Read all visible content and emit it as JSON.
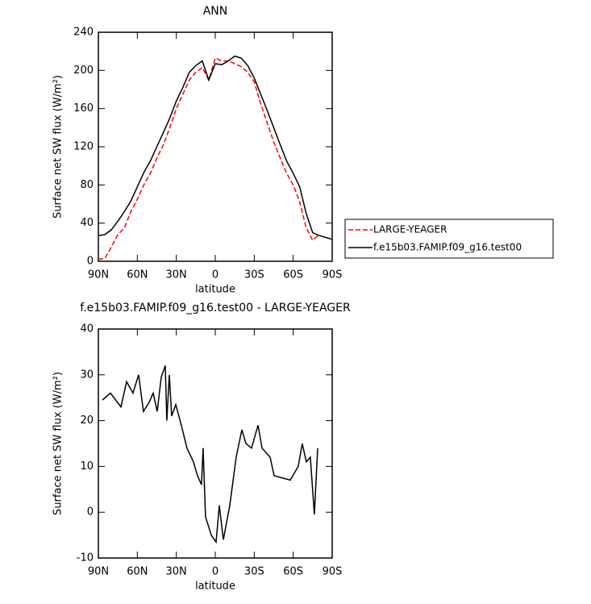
{
  "chart_data": [
    {
      "type": "line",
      "title": "ANN",
      "xlabel": "latitude",
      "ylabel": "Surface net SW flux (W/m²)",
      "x": [
        90,
        85,
        80,
        75,
        70,
        65,
        60,
        55,
        50,
        45,
        40,
        35,
        30,
        25,
        20,
        15,
        10,
        5,
        0,
        -5,
        -10,
        -15,
        -20,
        -25,
        -30,
        -35,
        -40,
        -45,
        -50,
        -55,
        -60,
        -65,
        -70,
        -75,
        -80,
        -85,
        -90
      ],
      "xlim": [
        90,
        -90
      ],
      "xticks": [
        {
          "value": 90,
          "label": "90N"
        },
        {
          "value": 60,
          "label": "60N"
        },
        {
          "value": 30,
          "label": "30N"
        },
        0,
        {
          "value": -30,
          "label": "30S"
        },
        {
          "value": -60,
          "label": "60S"
        },
        {
          "value": -90,
          "label": "90S"
        }
      ],
      "ylim": [
        0,
        240
      ],
      "yticks": [
        0,
        40,
        80,
        120,
        160,
        200,
        240
      ],
      "legend": "right",
      "series": [
        {
          "name": "LARGE-YEAGER",
          "color": "#ff0000",
          "dash": "dashed",
          "values": [
            2,
            3,
            15,
            28,
            35,
            52,
            65,
            80,
            92,
            108,
            122,
            140,
            160,
            175,
            190,
            198,
            203,
            190,
            213,
            210,
            210,
            207,
            204,
            198,
            188,
            165,
            145,
            125,
            108,
            92,
            80,
            62,
            35,
            22,
            28,
            null,
            null
          ]
        },
        {
          "name": "f.e15b03.FAMIP.f09_g16.test00",
          "color": "#000000",
          "dash": "solid",
          "values": [
            27,
            28,
            33,
            42,
            52,
            63,
            78,
            93,
            105,
            120,
            135,
            150,
            168,
            182,
            198,
            205,
            210,
            190,
            207,
            206,
            210,
            215,
            213,
            205,
            192,
            175,
            158,
            140,
            122,
            105,
            92,
            78,
            50,
            30,
            27,
            25,
            23
          ]
        }
      ]
    },
    {
      "type": "line",
      "title": "f.e15b03.FAMIP.f09_g16.test00 - LARGE-YEAGER",
      "xlabel": "latitude",
      "ylabel": "Surface net SW flux (W/m²)",
      "x": [
        86.9,
        80.7,
        72.6,
        68.3,
        63.4,
        59,
        55.3,
        50.9,
        47.8,
        44.7,
        41.6,
        38.5,
        37.3,
        35.4,
        33.6,
        30.4,
        26.1,
        21.8,
        16.8,
        13.7,
        10.6,
        9.4,
        7.5,
        3.1,
        -0.6,
        -3.1,
        -6.2,
        -11.2,
        -16.1,
        -20.5,
        -23.6,
        -27.9,
        -32.9,
        -36,
        -42.2,
        -45.3,
        -51.5,
        -57.7,
        -63.9,
        -67,
        -70.1,
        -73.2,
        -76.3,
        -78.8
      ],
      "xlim": [
        90,
        -90
      ],
      "xticks": [
        {
          "value": 90,
          "label": "90N"
        },
        {
          "value": 60,
          "label": "60N"
        },
        {
          "value": 30,
          "label": "30N"
        },
        0,
        {
          "value": -30,
          "label": "30S"
        },
        {
          "value": -60,
          "label": "60S"
        },
        {
          "value": -90,
          "label": "90S"
        }
      ],
      "ylim": [
        -10,
        40
      ],
      "yticks": [
        -10,
        0,
        10,
        20,
        30,
        40
      ],
      "series": [
        {
          "color": "#000000",
          "dash": "solid",
          "values": [
            24.5,
            26,
            23,
            28.5,
            26,
            30,
            22,
            24,
            26,
            22,
            29.5,
            32,
            20,
            30,
            21,
            23.5,
            19,
            14,
            11,
            8,
            6,
            14,
            -1,
            -5,
            -6.5,
            1.5,
            -6,
            1.5,
            12,
            18,
            15,
            14,
            19,
            14,
            12,
            8,
            7.5,
            7,
            10,
            15,
            11,
            12,
            -0.5,
            14
          ]
        }
      ]
    }
  ]
}
